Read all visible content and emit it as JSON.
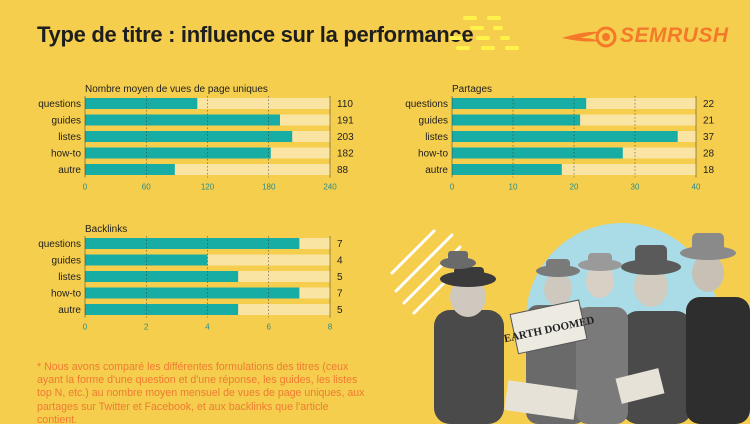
{
  "header": {
    "title": "Type de titre : influence sur la performance",
    "brand": "SEMRUSH"
  },
  "colors": {
    "background": "#F5CE4E",
    "bar": "#17ADA4",
    "track": "#F9E4A4",
    "footnote": "#F07A32",
    "brand": "#F47A2A",
    "illustration_circle": "#A9DCE6"
  },
  "chart_data": [
    {
      "type": "bar",
      "orientation": "horizontal",
      "title": "Nombre moyen de vues de page uniques",
      "categories": [
        "questions",
        "guides",
        "listes",
        "how-to",
        "autre"
      ],
      "values": [
        110,
        191,
        203,
        182,
        88
      ],
      "xlim": [
        0,
        240
      ],
      "xticks": [
        0,
        60,
        120,
        180,
        240
      ]
    },
    {
      "type": "bar",
      "orientation": "horizontal",
      "title": "Partages",
      "categories": [
        "questions",
        "guides",
        "listes",
        "how-to",
        "autre"
      ],
      "values": [
        22,
        21,
        37,
        28,
        18
      ],
      "xlim": [
        0,
        40
      ],
      "xticks": [
        0,
        10,
        20,
        30,
        40
      ]
    },
    {
      "type": "bar",
      "orientation": "horizontal",
      "title": "Backlinks",
      "categories": [
        "questions",
        "guides",
        "listes",
        "how-to",
        "autre"
      ],
      "values": [
        7,
        4,
        5,
        7,
        5
      ],
      "xlim": [
        0,
        8
      ],
      "xticks": [
        0,
        2,
        4,
        6,
        8
      ]
    }
  ],
  "footnote": "* Nous avons comparé les différentes formulations des titres (ceux ayant la forme d'une question et d'une réponse, les guides, les listes top N, etc.) au nombre moyen mensuel de vues de page uniques, aux partages sur Twitter et Facebook, et aux backlinks que l'article contient.",
  "illustration": {
    "newspaper_headline": "EARTH DOOMED"
  }
}
